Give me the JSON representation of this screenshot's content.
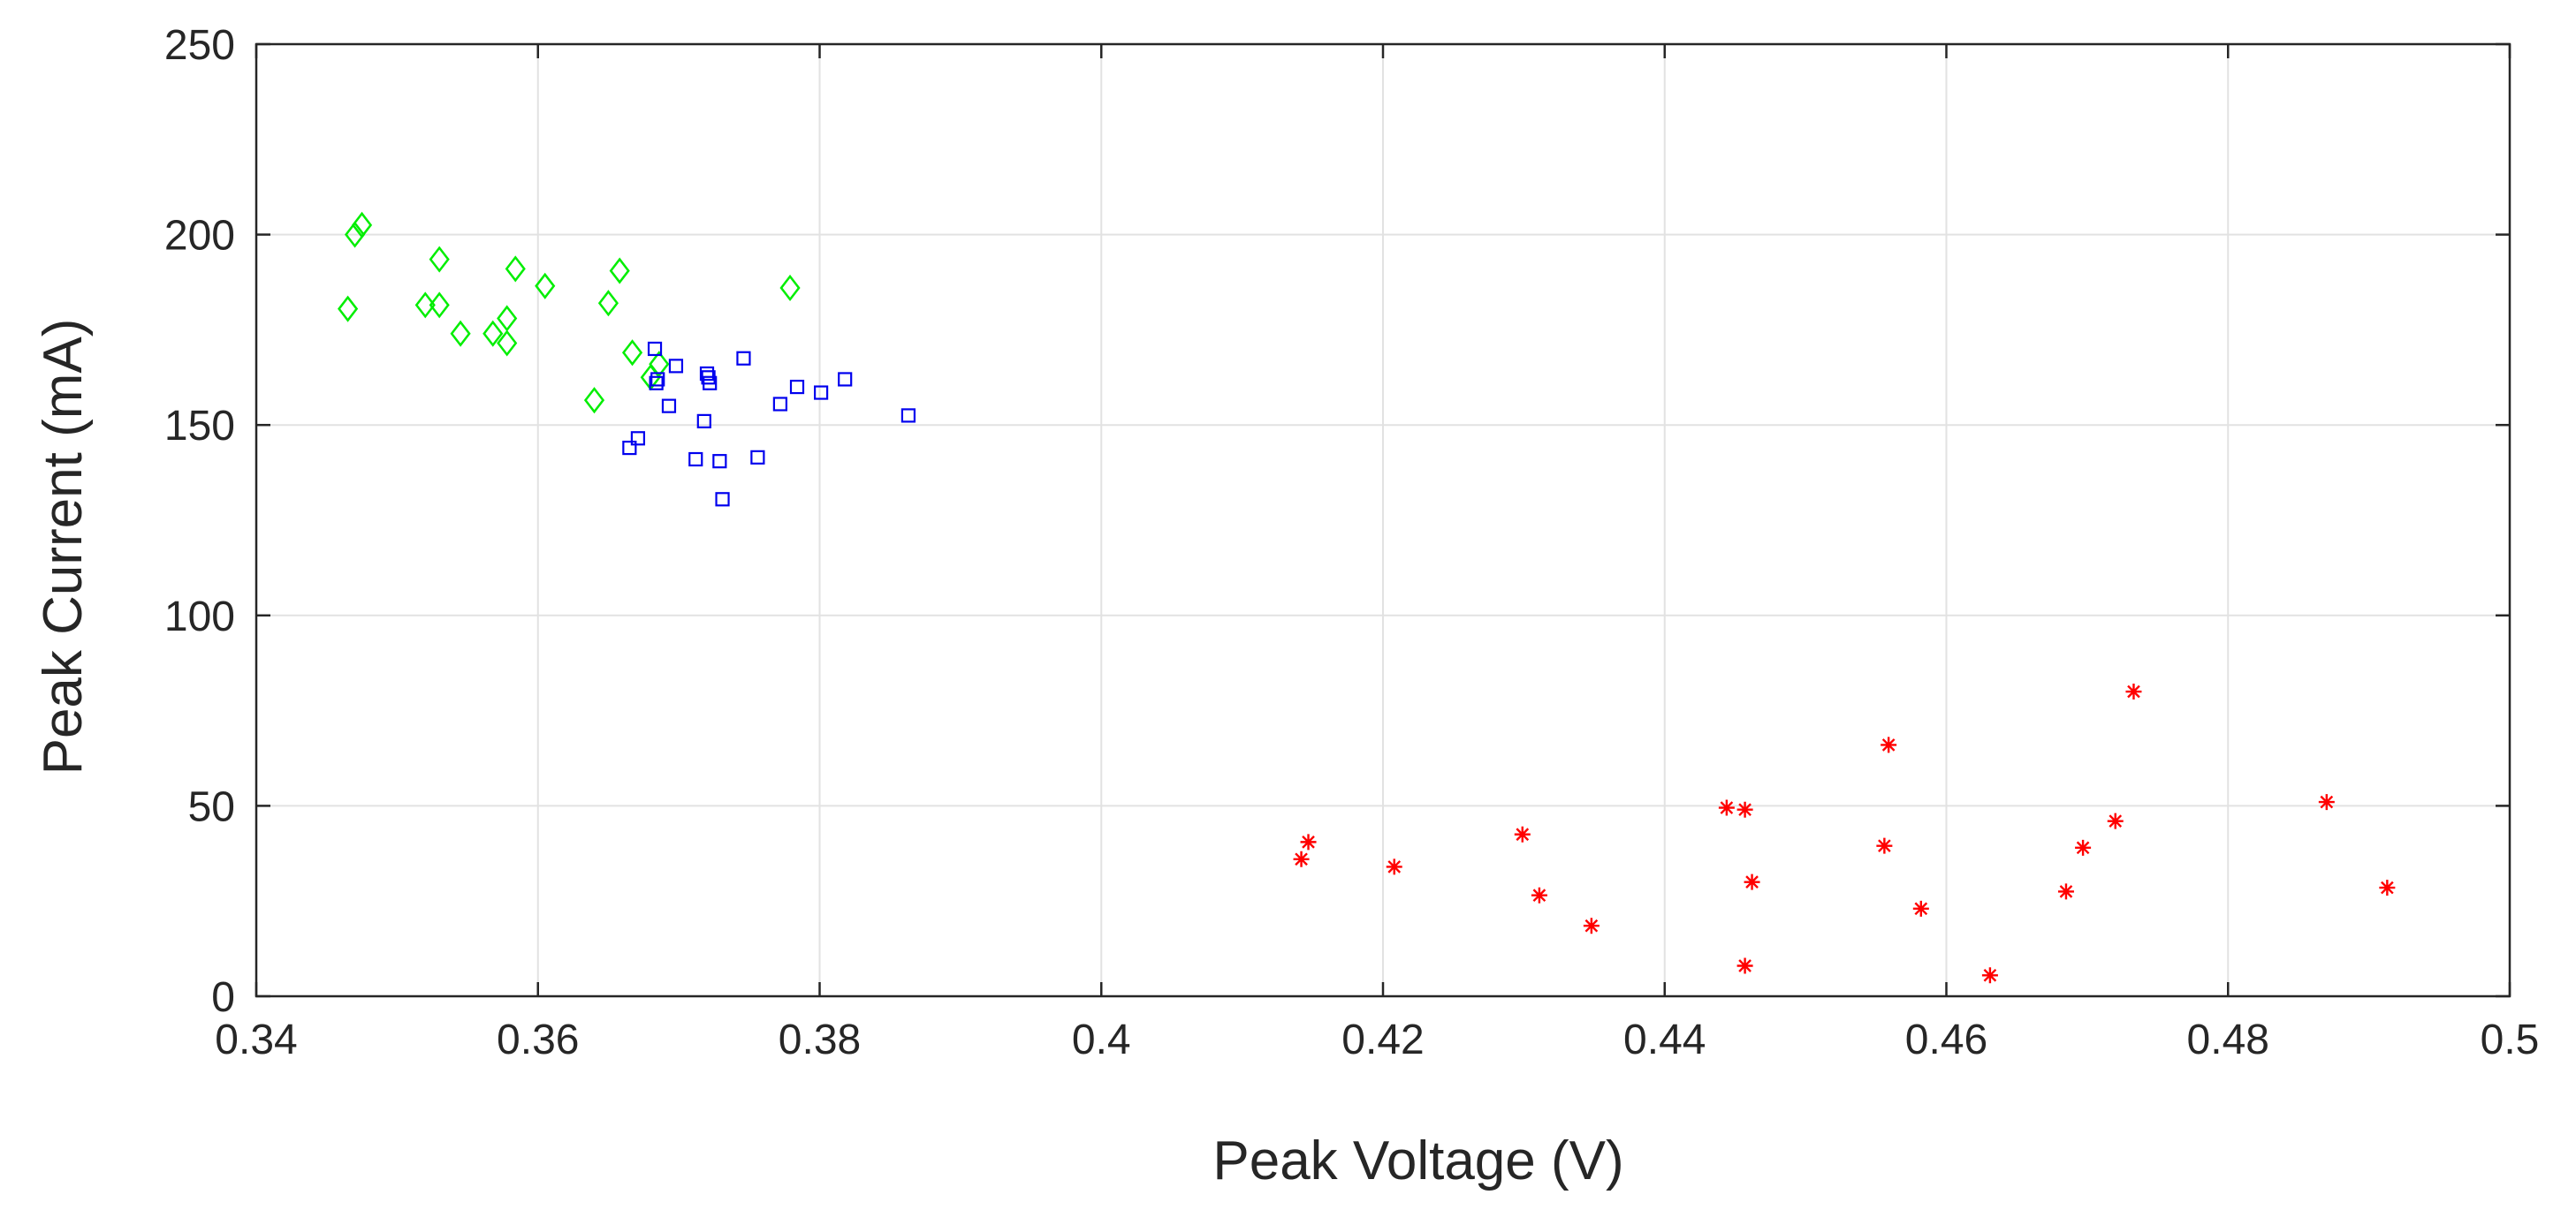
{
  "chart_data": {
    "type": "scatter",
    "title": "",
    "xlabel": "Peak Voltage (V)",
    "ylabel": "Peak Current (mA)",
    "xlim": [
      0.34,
      0.5
    ],
    "ylim": [
      0,
      250
    ],
    "x_ticks": [
      0.34,
      0.36,
      0.38,
      0.4,
      0.42,
      0.44,
      0.46,
      0.48,
      0.5
    ],
    "x_tick_labels": [
      "0.34",
      "0.36",
      "0.38",
      "0.4",
      "0.42",
      "0.44",
      "0.46",
      "0.48",
      "0.5"
    ],
    "y_ticks": [
      0,
      50,
      100,
      150,
      200,
      250
    ],
    "y_tick_labels": [
      "0",
      "50",
      "100",
      "150",
      "200",
      "250"
    ],
    "grid": true,
    "legend": null,
    "series": [
      {
        "name": "green-diamonds",
        "marker": "diamond",
        "color": "#00ee00",
        "points": [
          [
            0.3465,
            180.5
          ],
          [
            0.347,
            200
          ],
          [
            0.3475,
            202.5
          ],
          [
            0.352,
            181.5
          ],
          [
            0.353,
            193.5
          ],
          [
            0.353,
            181.5
          ],
          [
            0.3545,
            174
          ],
          [
            0.3568,
            174
          ],
          [
            0.3578,
            178
          ],
          [
            0.3578,
            171.5
          ],
          [
            0.3584,
            191
          ],
          [
            0.3605,
            186.5
          ],
          [
            0.364,
            156.5
          ],
          [
            0.365,
            182
          ],
          [
            0.3658,
            190.5
          ],
          [
            0.3667,
            169
          ],
          [
            0.368,
            162.5
          ],
          [
            0.3686,
            166
          ],
          [
            0.3779,
            186
          ]
        ]
      },
      {
        "name": "blue-squares",
        "marker": "square",
        "color": "#0000ee",
        "points": [
          [
            0.3665,
            144
          ],
          [
            0.3671,
            146.5
          ],
          [
            0.3683,
            170
          ],
          [
            0.3684,
            161
          ],
          [
            0.3685,
            162
          ],
          [
            0.3693,
            155
          ],
          [
            0.3698,
            165.5
          ],
          [
            0.3712,
            141
          ],
          [
            0.3718,
            151
          ],
          [
            0.372,
            163.5
          ],
          [
            0.3721,
            162.5
          ],
          [
            0.3722,
            161
          ],
          [
            0.3729,
            140.5
          ],
          [
            0.3731,
            130.5
          ],
          [
            0.3746,
            167.5
          ],
          [
            0.3756,
            141.5
          ],
          [
            0.3772,
            155.5
          ],
          [
            0.3784,
            160
          ],
          [
            0.3801,
            158.5
          ],
          [
            0.3818,
            162
          ],
          [
            0.3863,
            152.5
          ]
        ]
      },
      {
        "name": "red-asterisks",
        "marker": "asterisk",
        "color": "#ff0000",
        "points": [
          [
            0.4142,
            36
          ],
          [
            0.4147,
            40.5
          ],
          [
            0.4208,
            34
          ],
          [
            0.4299,
            42.5
          ],
          [
            0.4311,
            26.5
          ],
          [
            0.4348,
            18.5
          ],
          [
            0.4444,
            49.5
          ],
          [
            0.4457,
            49
          ],
          [
            0.4457,
            8
          ],
          [
            0.4462,
            30
          ],
          [
            0.4556,
            39.5
          ],
          [
            0.4559,
            66
          ],
          [
            0.4582,
            23
          ],
          [
            0.4631,
            5.5
          ],
          [
            0.4685,
            27.5
          ],
          [
            0.4697,
            39
          ],
          [
            0.472,
            46
          ],
          [
            0.4733,
            80
          ],
          [
            0.487,
            51
          ],
          [
            0.4913,
            28.5
          ]
        ]
      }
    ]
  }
}
